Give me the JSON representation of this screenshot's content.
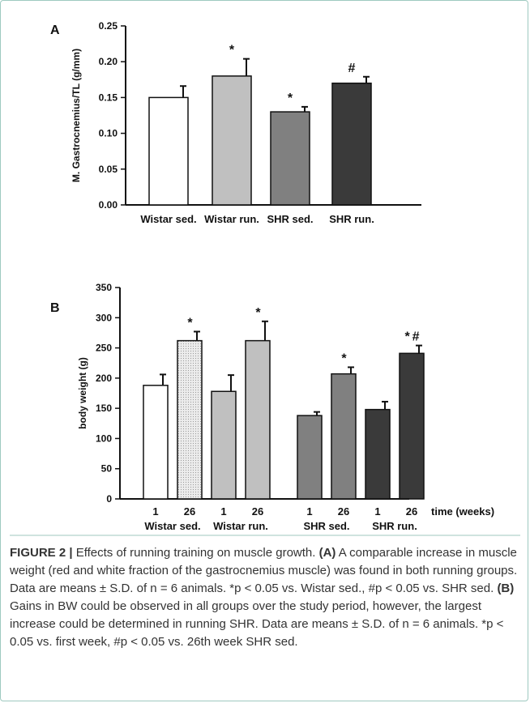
{
  "chart_data": [
    {
      "panel_letter": "A",
      "type": "bar",
      "categories": [
        "Wistar sed.",
        "Wistar run.",
        "SHR sed.",
        "SHR run."
      ],
      "values": [
        0.15,
        0.18,
        0.13,
        0.17
      ],
      "errors": [
        0.016,
        0.024,
        0.007,
        0.009
      ],
      "significance": [
        "",
        "*",
        "*",
        "#"
      ],
      "ylabel": "M. Gastrocnemius/TL (g/mm)",
      "ylim": [
        0,
        0.25
      ],
      "yticks": [
        "0.00",
        "0.05",
        "0.10",
        "0.15",
        "0.20",
        "0.25"
      ],
      "fills": [
        "#ffffff",
        "#c0c0c0",
        "#808080",
        "#3a3a3a"
      ]
    },
    {
      "panel_letter": "B",
      "type": "bar",
      "groups": [
        "Wistar sed.",
        "Wistar run.",
        "SHR sed.",
        "SHR run."
      ],
      "week_labels": [
        "1",
        "26",
        "1",
        "26",
        "1",
        "26",
        "1",
        "26"
      ],
      "values": [
        188,
        262,
        178,
        262,
        138,
        207,
        148,
        241
      ],
      "errors": [
        18,
        15,
        27,
        32,
        6,
        11,
        13,
        13
      ],
      "significance": [
        "",
        "*",
        "",
        "*",
        "",
        "*",
        "",
        "*#"
      ],
      "ylabel": "body weight (g)",
      "xlabel": "time (weeks)",
      "ylim": [
        0,
        350
      ],
      "yticks": [
        "0",
        "50",
        "100",
        "150",
        "200",
        "250",
        "300",
        "350"
      ],
      "fills": [
        "#ffffff",
        "#dcdcdc",
        "#c0c0c0",
        "#c0c0c0",
        "#808080",
        "#808080",
        "#3a3a3a",
        "#3a3a3a"
      ]
    }
  ],
  "caption": {
    "label": "FIGURE 2 |",
    "text": " Effects of running training on muscle growth. ",
    "a_tag": "(A)",
    "a_text": " A comparable increase in muscle weight (red and white fraction of the gastrocnemius muscle) was found in both running groups. Data are means ± S.D. of n = 6 animals. *p < 0.05 vs. Wistar sed., #p < 0.05 vs. SHR sed. ",
    "b_tag": "(B)",
    "b_text": " Gains in BW could be observed in all groups over the study period, however, the largest increase could be determined in running SHR. Data are means ± S.D. of n = 6 animals. *p < 0.05 vs. first week, #p < 0.05 vs. 26th week SHR sed."
  }
}
